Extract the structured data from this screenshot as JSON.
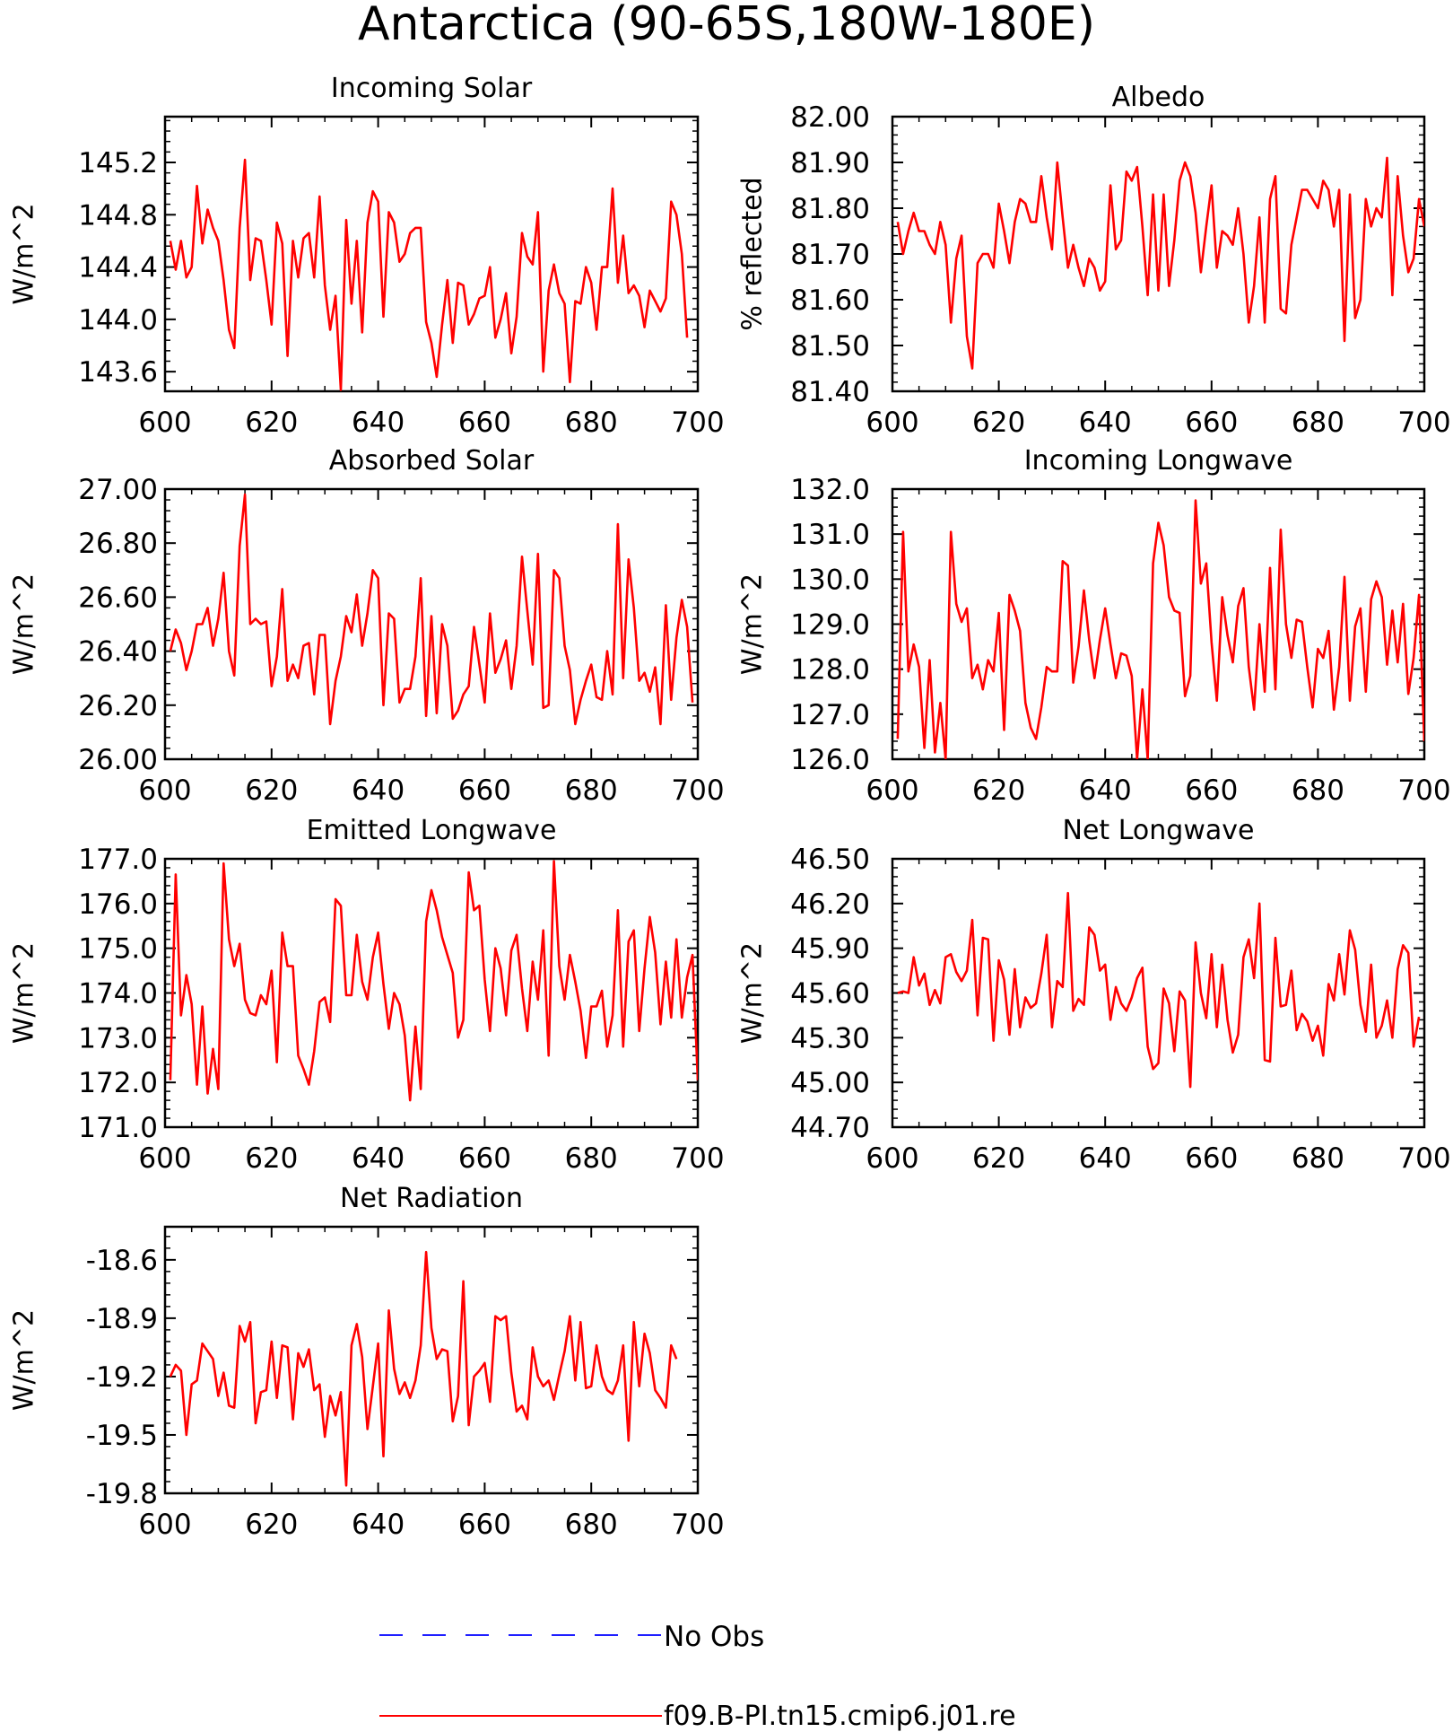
{
  "figure": {
    "title": "Antarctica (90-65S,180W-180E)"
  },
  "legend": {
    "items": [
      {
        "label": "No Obs",
        "color": "#1f1fff",
        "style": "dashed"
      },
      {
        "label": "f09.B-PI.tn15.cmip6.j01.re",
        "color": "#ff0000",
        "style": "solid"
      }
    ]
  },
  "chart_data": [
    {
      "type": "line",
      "title": "Incoming Solar",
      "ylabel": "W/m^2",
      "xlim": [
        600,
        700
      ],
      "ylim": [
        143.45,
        145.55
      ],
      "yticks": [
        "143.6",
        "144.0",
        "144.4",
        "144.8",
        "145.2"
      ],
      "ytick_values": [
        143.6,
        144.0,
        144.4,
        144.8,
        145.2
      ],
      "xticks": [
        "600",
        "620",
        "640",
        "660",
        "680",
        "700"
      ],
      "x_start": 601,
      "series": [
        {
          "color": "#ff0000",
          "values": [
            144.6,
            144.38,
            144.6,
            144.32,
            144.4,
            145.02,
            144.58,
            144.84,
            144.7,
            144.6,
            144.3,
            143.92,
            143.78,
            144.7,
            145.22,
            144.3,
            144.62,
            144.6,
            144.3,
            143.96,
            144.74,
            144.58,
            143.72,
            144.6,
            144.32,
            144.62,
            144.66,
            144.32,
            144.94,
            144.26,
            143.92,
            144.18,
            143.46,
            144.76,
            144.12,
            144.6,
            143.9,
            144.74,
            144.98,
            144.9,
            144.02,
            144.82,
            144.74,
            144.44,
            144.5,
            144.66,
            144.7,
            144.7,
            143.98,
            143.82,
            143.56,
            143.96,
            144.3,
            143.82,
            144.28,
            144.26,
            143.96,
            144.04,
            144.16,
            144.18,
            144.4,
            143.86,
            144.0,
            144.2,
            143.74,
            144.02,
            144.66,
            144.48,
            144.42,
            144.82,
            143.6,
            144.22,
            144.42,
            144.2,
            144.12,
            143.52,
            144.14,
            144.12,
            144.4,
            144.28,
            143.92,
            144.4,
            144.4,
            145.0,
            144.28,
            144.64,
            144.2,
            144.26,
            144.18,
            143.94,
            144.22,
            144.14,
            144.06,
            144.16,
            144.9,
            144.8,
            144.5,
            143.86
          ]
        }
      ]
    },
    {
      "type": "line",
      "title": "Albedo",
      "ylabel": "% reflected",
      "xlim": [
        600,
        700
      ],
      "ylim": [
        81.4,
        82.0
      ],
      "yticks": [
        "81.40",
        "81.50",
        "81.60",
        "81.70",
        "81.80",
        "81.90",
        "82.00"
      ],
      "ytick_values": [
        81.4,
        81.5,
        81.6,
        81.7,
        81.8,
        81.9,
        82.0
      ],
      "xticks": [
        "600",
        "620",
        "640",
        "660",
        "680",
        "700"
      ],
      "x_start": 601,
      "series": [
        {
          "color": "#ff0000",
          "values": [
            81.77,
            81.7,
            81.75,
            81.79,
            81.75,
            81.75,
            81.72,
            81.7,
            81.77,
            81.72,
            81.55,
            81.69,
            81.74,
            81.52,
            81.45,
            81.68,
            81.7,
            81.7,
            81.67,
            81.81,
            81.75,
            81.68,
            81.77,
            81.82,
            81.81,
            81.77,
            81.77,
            81.87,
            81.78,
            81.71,
            81.9,
            81.78,
            81.67,
            81.72,
            81.67,
            81.63,
            81.69,
            81.67,
            81.62,
            81.64,
            81.85,
            81.71,
            81.73,
            81.88,
            81.86,
            81.89,
            81.76,
            81.61,
            81.83,
            81.62,
            81.83,
            81.63,
            81.73,
            81.86,
            81.9,
            81.87,
            81.79,
            81.66,
            81.76,
            81.85,
            81.67,
            81.75,
            81.74,
            81.72,
            81.8,
            81.7,
            81.55,
            81.63,
            81.78,
            81.55,
            81.82,
            81.87,
            81.58,
            81.57,
            81.72,
            81.78,
            81.84,
            81.84,
            81.82,
            81.8,
            81.86,
            81.84,
            81.76,
            81.84,
            81.51,
            81.83,
            81.56,
            81.6,
            81.82,
            81.76,
            81.8,
            81.78,
            81.91,
            81.61,
            81.87,
            81.74,
            81.66,
            81.69,
            81.82,
            81.76
          ]
        }
      ]
    },
    {
      "type": "line",
      "title": "Absorbed Solar",
      "ylabel": "W/m^2",
      "xlim": [
        600,
        700
      ],
      "ylim": [
        26.0,
        27.0
      ],
      "yticks": [
        "26.00",
        "26.20",
        "26.40",
        "26.60",
        "26.80",
        "27.00"
      ],
      "ytick_values": [
        26.0,
        26.2,
        26.4,
        26.6,
        26.8,
        27.0
      ],
      "xticks": [
        "600",
        "620",
        "640",
        "660",
        "680",
        "700"
      ],
      "x_start": 601,
      "series": [
        {
          "color": "#ff0000",
          "values": [
            26.4,
            26.48,
            26.43,
            26.33,
            26.4,
            26.5,
            26.5,
            26.56,
            26.42,
            26.52,
            26.69,
            26.4,
            26.31,
            26.79,
            26.98,
            26.5,
            26.52,
            26.5,
            26.51,
            26.27,
            26.38,
            26.63,
            26.29,
            26.35,
            26.3,
            26.42,
            26.43,
            26.24,
            26.46,
            26.46,
            26.13,
            26.29,
            26.38,
            26.53,
            26.47,
            26.61,
            26.42,
            26.54,
            26.7,
            26.67,
            26.2,
            26.54,
            26.52,
            26.21,
            26.26,
            26.26,
            26.38,
            26.67,
            26.16,
            26.53,
            26.17,
            26.5,
            26.42,
            26.15,
            26.18,
            26.24,
            26.27,
            26.49,
            26.35,
            26.21,
            26.54,
            26.32,
            26.37,
            26.44,
            26.26,
            26.42,
            26.75,
            26.55,
            26.35,
            26.76,
            26.19,
            26.2,
            26.7,
            26.67,
            26.42,
            26.33,
            26.13,
            26.22,
            26.29,
            26.35,
            26.23,
            26.22,
            26.4,
            26.24,
            26.87,
            26.3,
            26.74,
            26.56,
            26.29,
            26.32,
            26.25,
            26.34,
            26.13,
            26.57,
            26.22,
            26.45,
            26.59,
            26.49,
            26.21
          ]
        }
      ]
    },
    {
      "type": "line",
      "title": "Incoming Longwave",
      "ylabel": "W/m^2",
      "xlim": [
        600,
        700
      ],
      "ylim": [
        126.0,
        132.0
      ],
      "yticks": [
        "126.0",
        "127.0",
        "128.0",
        "129.0",
        "130.0",
        "131.0",
        "132.0"
      ],
      "ytick_values": [
        126.0,
        127.0,
        128.0,
        129.0,
        130.0,
        131.0,
        132.0
      ],
      "xticks": [
        "600",
        "620",
        "640",
        "660",
        "680",
        "700"
      ],
      "x_start": 601,
      "series": [
        {
          "color": "#ff0000",
          "values": [
            126.45,
            131.05,
            127.95,
            128.55,
            128.05,
            126.25,
            128.2,
            126.15,
            127.25,
            126.0,
            131.05,
            129.45,
            129.05,
            129.35,
            127.8,
            128.1,
            127.55,
            128.2,
            127.95,
            129.25,
            126.65,
            129.65,
            129.3,
            128.85,
            127.25,
            126.7,
            126.45,
            127.15,
            128.05,
            127.95,
            127.95,
            130.4,
            130.3,
            127.7,
            128.5,
            129.75,
            128.65,
            127.8,
            128.65,
            129.35,
            128.55,
            127.8,
            128.35,
            128.3,
            127.85,
            126.0,
            127.55,
            126.0,
            130.35,
            131.25,
            130.75,
            129.6,
            129.3,
            129.25,
            127.4,
            127.85,
            131.75,
            129.9,
            130.35,
            128.6,
            127.3,
            129.6,
            128.75,
            128.15,
            129.4,
            129.8,
            128.05,
            127.1,
            129.0,
            127.5,
            130.25,
            127.55,
            131.1,
            129.0,
            128.25,
            129.1,
            129.05,
            128.05,
            127.15,
            128.45,
            128.25,
            128.85,
            127.1,
            128.05,
            130.05,
            127.3,
            128.95,
            129.35,
            127.5,
            129.55,
            129.95,
            129.6,
            128.1,
            129.3,
            128.15,
            129.45,
            127.45,
            128.25,
            129.65,
            126.4
          ]
        }
      ]
    },
    {
      "type": "line",
      "title": "Emitted Longwave",
      "ylabel": "W/m^2",
      "xlim": [
        600,
        700
      ],
      "ylim": [
        171.0,
        177.0
      ],
      "yticks": [
        "171.0",
        "172.0",
        "173.0",
        "174.0",
        "175.0",
        "176.0",
        "177.0"
      ],
      "ytick_values": [
        171.0,
        172.0,
        173.0,
        174.0,
        175.0,
        176.0,
        177.0
      ],
      "xticks": [
        "600",
        "620",
        "640",
        "660",
        "680",
        "700"
      ],
      "x_start": 601,
      "series": [
        {
          "color": "#ff0000",
          "values": [
            172.05,
            176.65,
            173.5,
            174.4,
            173.75,
            171.95,
            173.7,
            171.75,
            172.75,
            171.85,
            176.9,
            175.2,
            174.6,
            175.1,
            173.85,
            173.55,
            173.5,
            173.95,
            173.75,
            174.5,
            172.45,
            175.35,
            174.6,
            174.6,
            172.6,
            172.3,
            171.95,
            172.7,
            173.8,
            173.9,
            173.35,
            176.1,
            175.95,
            173.95,
            173.95,
            175.3,
            174.25,
            173.85,
            174.8,
            175.35,
            174.2,
            173.2,
            174.0,
            173.75,
            173.05,
            171.6,
            173.25,
            171.85,
            175.6,
            176.3,
            175.85,
            175.25,
            174.85,
            174.45,
            173.0,
            173.4,
            176.7,
            175.85,
            175.95,
            174.3,
            173.15,
            175.0,
            174.55,
            173.5,
            174.95,
            175.3,
            174.1,
            173.15,
            174.7,
            173.85,
            175.4,
            172.6,
            176.95,
            174.6,
            173.85,
            174.85,
            174.25,
            173.6,
            172.55,
            173.7,
            173.7,
            174.05,
            172.8,
            173.5,
            175.85,
            172.8,
            175.15,
            175.4,
            173.15,
            174.55,
            175.7,
            174.9,
            173.3,
            174.7,
            173.45,
            175.2,
            173.45,
            174.35,
            174.85,
            172.05
          ]
        }
      ]
    },
    {
      "type": "line",
      "title": "Net Longwave",
      "ylabel": "W/m^2",
      "xlim": [
        600,
        700
      ],
      "ylim": [
        44.7,
        46.5
      ],
      "yticks": [
        "44.70",
        "45.00",
        "45.30",
        "45.60",
        "45.90",
        "46.20",
        "46.50"
      ],
      "ytick_values": [
        44.7,
        45.0,
        45.3,
        45.6,
        45.9,
        46.2,
        46.5
      ],
      "xticks": [
        "600",
        "620",
        "640",
        "660",
        "680",
        "700"
      ],
      "x_start": 601,
      "series": [
        {
          "color": "#ff0000",
          "values": [
            45.6,
            45.61,
            45.6,
            45.84,
            45.65,
            45.73,
            45.52,
            45.62,
            45.53,
            45.84,
            45.86,
            45.74,
            45.68,
            45.75,
            46.09,
            45.45,
            45.97,
            45.96,
            45.28,
            45.82,
            45.69,
            45.32,
            45.76,
            45.37,
            45.57,
            45.5,
            45.53,
            45.73,
            45.99,
            45.37,
            45.68,
            45.64,
            46.27,
            45.48,
            45.56,
            45.52,
            46.04,
            45.99,
            45.75,
            45.79,
            45.42,
            45.64,
            45.53,
            45.48,
            45.57,
            45.7,
            45.77,
            45.24,
            45.09,
            45.13,
            45.63,
            45.53,
            45.21,
            45.61,
            45.55,
            44.97,
            45.94,
            45.6,
            45.43,
            45.86,
            45.37,
            45.79,
            45.42,
            45.2,
            45.32,
            45.84,
            45.96,
            45.7,
            46.2,
            45.15,
            45.14,
            45.97,
            45.51,
            45.52,
            45.75,
            45.35,
            45.46,
            45.41,
            45.28,
            45.38,
            45.18,
            45.66,
            45.55,
            45.86,
            45.59,
            46.02,
            45.89,
            45.52,
            45.34,
            45.79,
            45.3,
            45.38,
            45.55,
            45.3,
            45.76,
            45.92,
            45.87,
            45.24,
            45.44
          ]
        }
      ]
    },
    {
      "type": "line",
      "title": "Net Radiation",
      "ylabel": "W/m^2",
      "xlim": [
        600,
        700
      ],
      "ylim": [
        -19.8,
        -18.43
      ],
      "yticks": [
        "-19.8",
        "-19.5",
        "-19.2",
        "-18.9",
        "-18.6"
      ],
      "ytick_values": [
        -19.8,
        -19.5,
        -19.2,
        -18.9,
        -18.6
      ],
      "xticks": [
        "600",
        "620",
        "640",
        "660",
        "680",
        "700"
      ],
      "x_start": 601,
      "series": [
        {
          "color": "#ff0000",
          "values": [
            -19.2,
            -19.14,
            -19.17,
            -19.5,
            -19.24,
            -19.22,
            -19.03,
            -19.07,
            -19.11,
            -19.3,
            -19.18,
            -19.35,
            -19.36,
            -18.94,
            -19.02,
            -18.92,
            -19.44,
            -19.28,
            -19.27,
            -19.02,
            -19.31,
            -19.04,
            -19.05,
            -19.42,
            -19.08,
            -19.15,
            -19.06,
            -19.27,
            -19.24,
            -19.51,
            -19.3,
            -19.4,
            -19.28,
            -19.76,
            -19.04,
            -18.93,
            -19.1,
            -19.47,
            -19.25,
            -19.03,
            -19.61,
            -18.86,
            -19.16,
            -19.29,
            -19.23,
            -19.31,
            -19.22,
            -19.04,
            -18.56,
            -18.95,
            -19.11,
            -19.06,
            -19.07,
            -19.43,
            -19.3,
            -18.71,
            -19.45,
            -19.2,
            -19.17,
            -19.13,
            -19.33,
            -18.89,
            -18.91,
            -18.89,
            -19.18,
            -19.38,
            -19.35,
            -19.42,
            -19.05,
            -19.2,
            -19.25,
            -19.22,
            -19.32,
            -19.19,
            -19.07,
            -18.89,
            -19.22,
            -18.92,
            -19.26,
            -19.25,
            -19.04,
            -19.2,
            -19.27,
            -19.29,
            -19.22,
            -19.04,
            -19.53,
            -18.92,
            -19.25,
            -18.98,
            -19.08,
            -19.27,
            -19.31,
            -19.36,
            -19.04,
            -19.11
          ]
        }
      ]
    }
  ]
}
